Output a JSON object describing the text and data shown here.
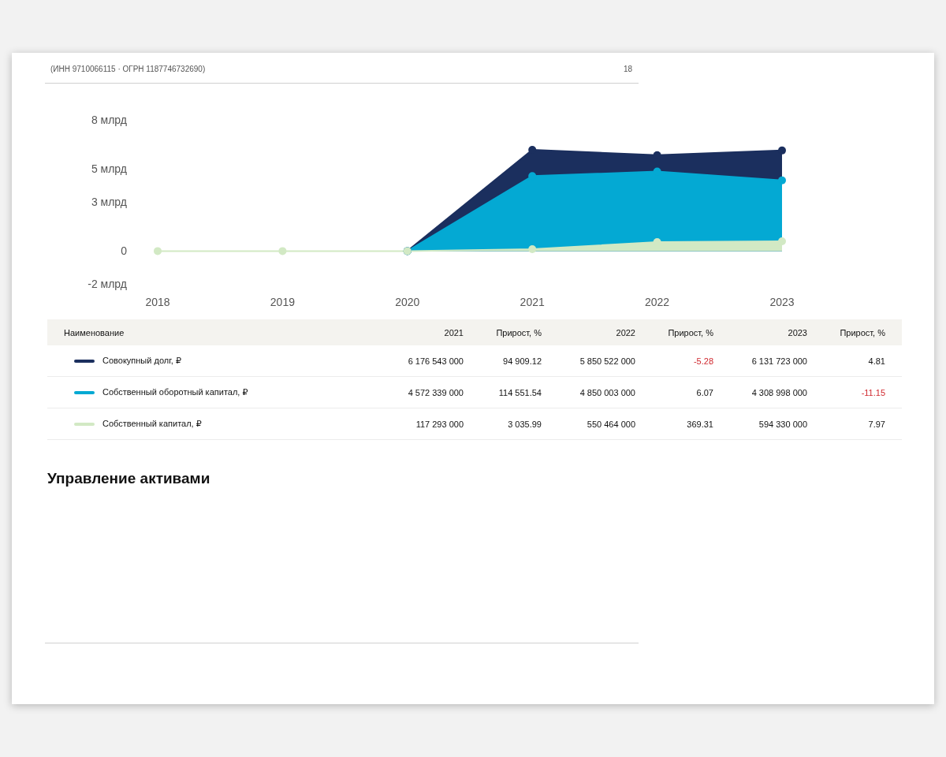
{
  "chart_data": {
    "type": "area",
    "categories": [
      "2018",
      "2019",
      "2020",
      "2021",
      "2022",
      "2023"
    ],
    "series": [
      {
        "name": "Совокупный долг, ₽",
        "color": "#1b2f5e",
        "values": [
          null,
          null,
          0,
          6.176543,
          5.850522,
          6.131723
        ]
      },
      {
        "name": "Собственный оборотный капитал, ₽",
        "color": "#04a9d3",
        "values": [
          null,
          null,
          0,
          4.572339,
          4.850003,
          4.308998
        ]
      },
      {
        "name": "Собственный капитал, ₽",
        "color": "#d2e9c4",
        "values": [
          0,
          0,
          0,
          0.117293,
          0.550464,
          0.59433
        ]
      }
    ],
    "ylim": [
      -2,
      8
    ],
    "yticks": [
      {
        "value": -2,
        "label": "-2 млрд"
      },
      0,
      {
        "value": 3,
        "label": "3 млрд"
      },
      {
        "value": 5,
        "label": "5 млрд"
      },
      {
        "value": 8,
        "label": "8 млрд"
      }
    ],
    "marker": "circle",
    "legend": "bottom",
    "legend_title": "Наименование",
    "annotations": [
      "(ИНН 9710066115 · ОГРН 1187746732690)",
      "18",
      "Прирост, %",
      "Прирост, %",
      "Прирост, %",
      "6 176 543 000",
      "94 909.12",
      "5 850 522 000",
      "-5.28",
      "6 131 723 000",
      "4.81",
      "4 572 339 000",
      "114 551.54",
      "4 850 003 000",
      "6.07",
      "4 308 998 000",
      "-11.15",
      "117 293 000",
      "3 035.99",
      "550 464 000",
      "369.31",
      "594 330 000",
      "7.97",
      "Управление активами"
    ]
  }
}
